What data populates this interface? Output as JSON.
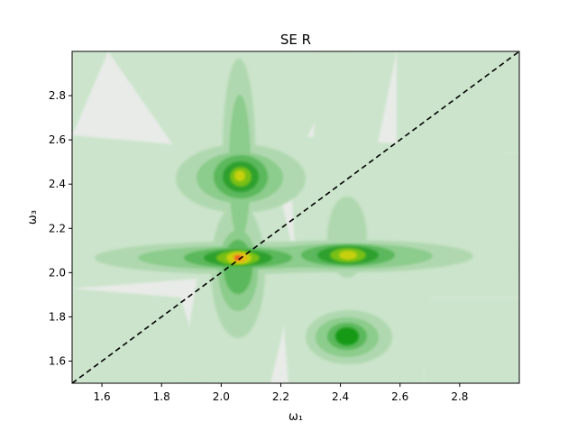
{
  "chart_data": {
    "type": "heatmap",
    "title": "SE R",
    "xlabel": "ω₁",
    "ylabel": "ω₃",
    "xlim": [
      1.5,
      3.0
    ],
    "ylim": [
      1.5,
      3.0
    ],
    "x_ticks": [
      1.6,
      1.8,
      2.0,
      2.2,
      2.4,
      2.6,
      2.8
    ],
    "y_ticks": [
      1.6,
      1.8,
      2.0,
      2.2,
      2.4,
      2.6,
      2.8
    ],
    "x_tick_labels": [
      "1.6",
      "1.8",
      "2.0",
      "2.2",
      "2.4",
      "2.6",
      "2.8"
    ],
    "y_tick_labels": [
      "1.6",
      "1.8",
      "2.0",
      "2.2",
      "2.4",
      "2.6",
      "2.8"
    ],
    "grid": false,
    "colormap": [
      "#e8ebe8",
      "#cbe4cb",
      "#b0d8b0",
      "#8ccc8c",
      "#5cb85c",
      "#2fa02f",
      "#159a15",
      "#78c018",
      "#c8d010",
      "#e8b818",
      "#e86020"
    ],
    "diagonal": {
      "x": [
        1.5,
        3.0
      ],
      "y": [
        1.5,
        3.0
      ],
      "style": "dashed",
      "color": "#000000"
    },
    "peaks": [
      {
        "x": 2.06,
        "y": 2.06,
        "level": 1.0
      },
      {
        "x": 2.06,
        "y": 2.42,
        "level": 0.7
      },
      {
        "x": 2.42,
        "y": 2.07,
        "level": 0.75
      },
      {
        "x": 2.42,
        "y": 1.71,
        "level": 0.55
      }
    ]
  }
}
